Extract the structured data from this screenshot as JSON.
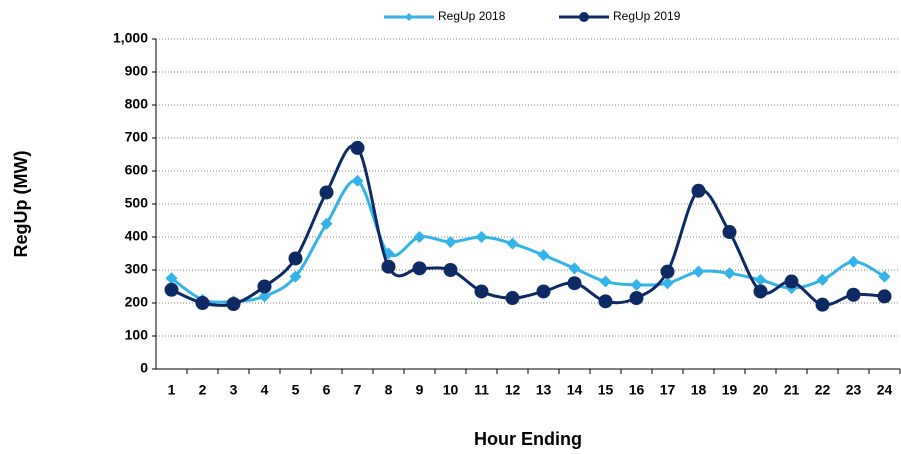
{
  "chart_data": {
    "type": "line",
    "xlabel": "Hour Ending",
    "ylabel": "RegUp (MW)",
    "categories": [
      "1",
      "2",
      "3",
      "4",
      "5",
      "6",
      "7",
      "8",
      "9",
      "10",
      "11",
      "12",
      "13",
      "14",
      "15",
      "16",
      "17",
      "18",
      "19",
      "20",
      "21",
      "22",
      "23",
      "24"
    ],
    "series": [
      {
        "name": "RegUp 2018",
        "color": "#33b3e8",
        "marker": "diamond",
        "values": [
          275,
          210,
          205,
          220,
          280,
          440,
          570,
          350,
          400,
          385,
          400,
          380,
          345,
          305,
          265,
          255,
          260,
          295,
          290,
          270,
          245,
          270,
          325,
          280
        ]
      },
      {
        "name": "RegUp 2019",
        "color": "#0d2a64",
        "marker": "circle",
        "values": [
          240,
          200,
          197,
          250,
          335,
          535,
          670,
          310,
          305,
          300,
          235,
          215,
          235,
          260,
          205,
          215,
          295,
          540,
          415,
          235,
          265,
          195,
          225,
          220
        ]
      }
    ],
    "ylim": [
      0,
      1000
    ],
    "yticks": [
      0,
      100,
      200,
      300,
      400,
      500,
      600,
      700,
      800,
      900,
      {
        "value": 1000,
        "label": "1,000"
      }
    ],
    "grid": true,
    "legend": "top"
  }
}
